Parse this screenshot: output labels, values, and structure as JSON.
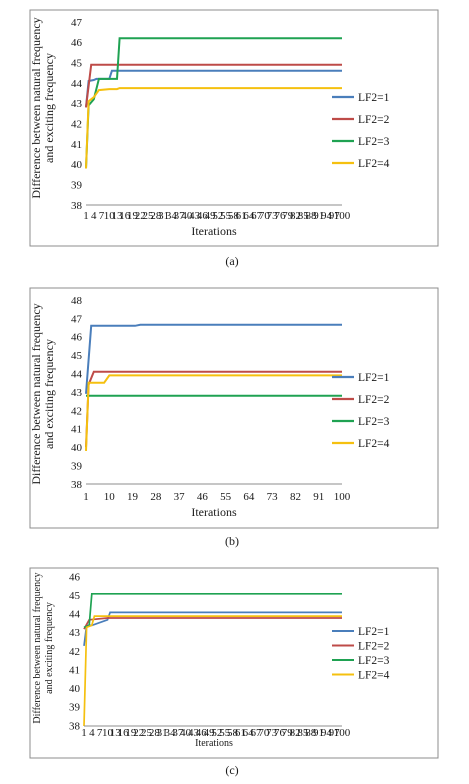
{
  "charts": [
    {
      "caption": "(a)",
      "ylabel_line1": "Difference between natural frequency",
      "ylabel_line2": "and exciting frequency",
      "xlabel": "Iterations",
      "yticks": [
        "38",
        "39",
        "40",
        "41",
        "42",
        "43",
        "44",
        "45",
        "46",
        "47"
      ],
      "xticks": [
        "1",
        "4",
        "7",
        "10",
        "13",
        "16",
        "19",
        "22",
        "25",
        "28",
        "31",
        "34",
        "37",
        "40",
        "43",
        "46",
        "49",
        "52",
        "55",
        "58",
        "61",
        "64",
        "67",
        "70",
        "73",
        "76",
        "79",
        "82",
        "85",
        "88",
        "91",
        "94",
        "97",
        "100"
      ],
      "legend": [
        "LF2=1",
        "LF2=2",
        "LF2=3",
        "LF2=4"
      ]
    },
    {
      "caption": "(b)",
      "ylabel_line1": "Difference between natural frequency",
      "ylabel_line2": "and exciting frequency",
      "xlabel": "Iterations",
      "yticks": [
        "38",
        "39",
        "40",
        "41",
        "42",
        "43",
        "44",
        "45",
        "46",
        "47",
        "48"
      ],
      "xticks": [
        "1",
        "10",
        "19",
        "28",
        "37",
        "46",
        "55",
        "64",
        "73",
        "82",
        "91",
        "100"
      ],
      "legend": [
        "LF2=1",
        "LF2=2",
        "LF2=3",
        "LF2=4"
      ]
    },
    {
      "caption": "(c)",
      "ylabel_line1": "Difference between natural frequency",
      "ylabel_line2": "and exciting frequency",
      "xlabel": "Iterations",
      "yticks": [
        "38",
        "39",
        "40",
        "41",
        "42",
        "43",
        "44",
        "45",
        "46"
      ],
      "xticks": [
        "1",
        "4",
        "7",
        "10",
        "13",
        "16",
        "19",
        "22",
        "25",
        "28",
        "31",
        "34",
        "37",
        "40",
        "43",
        "46",
        "49",
        "52",
        "55",
        "58",
        "61",
        "64",
        "67",
        "70",
        "73",
        "76",
        "79",
        "82",
        "85",
        "88",
        "91",
        "94",
        "97",
        "100"
      ],
      "legend": [
        "LF2=1",
        "LF2=2",
        "LF2=3",
        "LF2=4"
      ]
    }
  ],
  "chart_data": [
    {
      "type": "line",
      "xlabel": "Iterations",
      "ylabel": "Difference between natural frequency and exciting frequency",
      "ylim": [
        38,
        47
      ],
      "xlim": [
        1,
        100
      ],
      "grid": false,
      "legend_position": "right",
      "series": [
        {
          "name": "LF2=1",
          "color": "#4a7ebb",
          "points": [
            [
              1,
              42.8
            ],
            [
              2,
              44.1
            ],
            [
              4,
              44.15
            ],
            [
              5,
              44.2
            ],
            [
              10,
              44.2
            ],
            [
              11,
              44.6
            ],
            [
              100,
              44.6
            ]
          ]
        },
        {
          "name": "LF2=2",
          "color": "#be4b48",
          "points": [
            [
              1,
              42.8
            ],
            [
              3,
              44.9
            ],
            [
              100,
              44.9
            ]
          ]
        },
        {
          "name": "LF2=3",
          "color": "#1fa252",
          "points": [
            [
              1,
              39.8
            ],
            [
              2,
              42.9
            ],
            [
              4,
              43.2
            ],
            [
              6,
              44.2
            ],
            [
              13,
              44.2
            ],
            [
              14,
              46.2
            ],
            [
              100,
              46.2
            ]
          ]
        },
        {
          "name": "LF2=4",
          "color": "#f5c00f",
          "points": [
            [
              1,
              39.8
            ],
            [
              2,
              43.1
            ],
            [
              4,
              43.3
            ],
            [
              6,
              43.65
            ],
            [
              10,
              43.7
            ],
            [
              13,
              43.7
            ],
            [
              14,
              43.75
            ],
            [
              100,
              43.75
            ]
          ]
        }
      ]
    },
    {
      "type": "line",
      "xlabel": "Iterations",
      "ylabel": "Difference between natural frequency and exciting frequency",
      "ylim": [
        38,
        48
      ],
      "xlim": [
        1,
        100
      ],
      "grid": false,
      "legend_position": "right",
      "series": [
        {
          "name": "LF2=1",
          "color": "#4a7ebb",
          "points": [
            [
              1,
              42.9
            ],
            [
              3,
              46.6
            ],
            [
              20,
              46.6
            ],
            [
              22,
              46.65
            ],
            [
              100,
              46.65
            ]
          ]
        },
        {
          "name": "LF2=2",
          "color": "#be4b48",
          "points": [
            [
              1,
              40.0
            ],
            [
              2,
              43.4
            ],
            [
              4,
              44.1
            ],
            [
              100,
              44.1
            ]
          ]
        },
        {
          "name": "LF2=3",
          "color": "#1fa252",
          "points": [
            [
              1,
              42.8
            ],
            [
              100,
              42.8
            ]
          ]
        },
        {
          "name": "LF2=4",
          "color": "#f5c00f",
          "points": [
            [
              1,
              39.8
            ],
            [
              2,
              43.5
            ],
            [
              8,
              43.5
            ],
            [
              10,
              43.9
            ],
            [
              100,
              43.9
            ]
          ]
        }
      ]
    },
    {
      "type": "line",
      "xlabel": "Iterations",
      "ylabel": "Difference between natural frequency and exciting frequency",
      "ylim": [
        38,
        46
      ],
      "xlim": [
        1,
        100
      ],
      "grid": false,
      "legend_position": "right",
      "series": [
        {
          "name": "LF2=1",
          "color": "#4a7ebb",
          "points": [
            [
              1,
              42.3
            ],
            [
              2,
              43.4
            ],
            [
              4,
              43.4
            ],
            [
              10,
              43.7
            ],
            [
              11,
              44.1
            ],
            [
              100,
              44.1
            ]
          ]
        },
        {
          "name": "LF2=2",
          "color": "#be4b48",
          "points": [
            [
              1,
              43.2
            ],
            [
              3,
              43.7
            ],
            [
              10,
              43.8
            ],
            [
              100,
              43.8
            ]
          ]
        },
        {
          "name": "LF2=3",
          "color": "#1fa252",
          "points": [
            [
              1,
              43.3
            ],
            [
              3,
              43.4
            ],
            [
              4,
              45.1
            ],
            [
              100,
              45.1
            ]
          ]
        },
        {
          "name": "LF2=4",
          "color": "#f5c00f",
          "points": [
            [
              1,
              38.0
            ],
            [
              2,
              43.3
            ],
            [
              4,
              43.4
            ],
            [
              5,
              43.9
            ],
            [
              100,
              43.9
            ]
          ]
        }
      ]
    }
  ]
}
